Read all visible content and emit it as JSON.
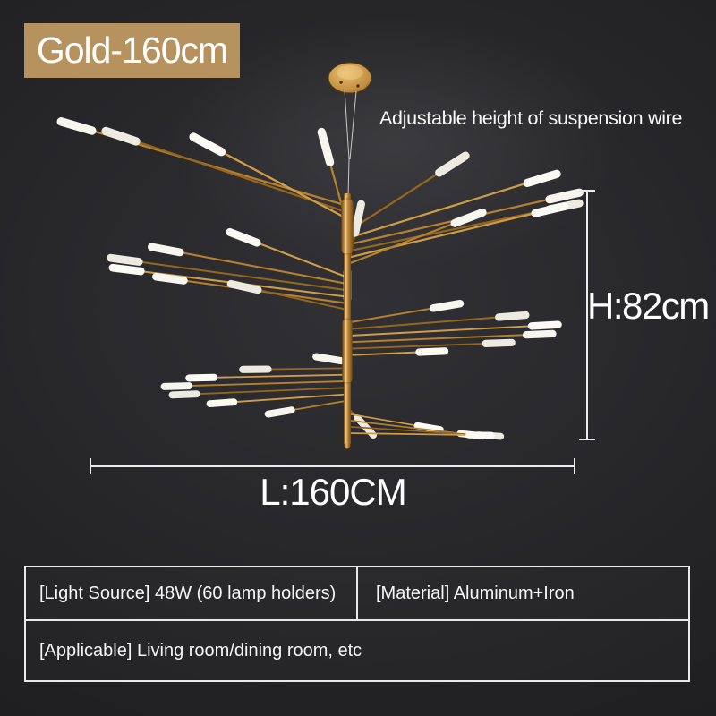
{
  "badge": {
    "label": "Gold-160cm"
  },
  "annotations": {
    "wire_note": "Adjustable height of suspension wire",
    "height_label": "H:82cm",
    "length_label": "L:160CM"
  },
  "specs": {
    "light_source": "[Light Source] 48W (60 lamp holders)",
    "material": "[Material] Aluminum+Iron",
    "applicable": "[Applicable] Living room/dining room, etc"
  },
  "product": {
    "description": "gold multi-arm sputnik branch chandelier with white tube lamps"
  },
  "colors": {
    "background": "#232326",
    "badge_bg": "#b6925f",
    "text": "#ffffff",
    "dimension_line": "#ececec",
    "gold": "#c28f42",
    "gold_dark": "#77490f",
    "gold_light": "#e9bc6e",
    "arm_shades": [
      "#b5812f",
      "#96661e",
      "#cf9c48"
    ],
    "lamp_shades": [
      "#f6f5ee",
      "#eceae1",
      "#fbfaf5"
    ],
    "wire": "#c9c9c9"
  }
}
